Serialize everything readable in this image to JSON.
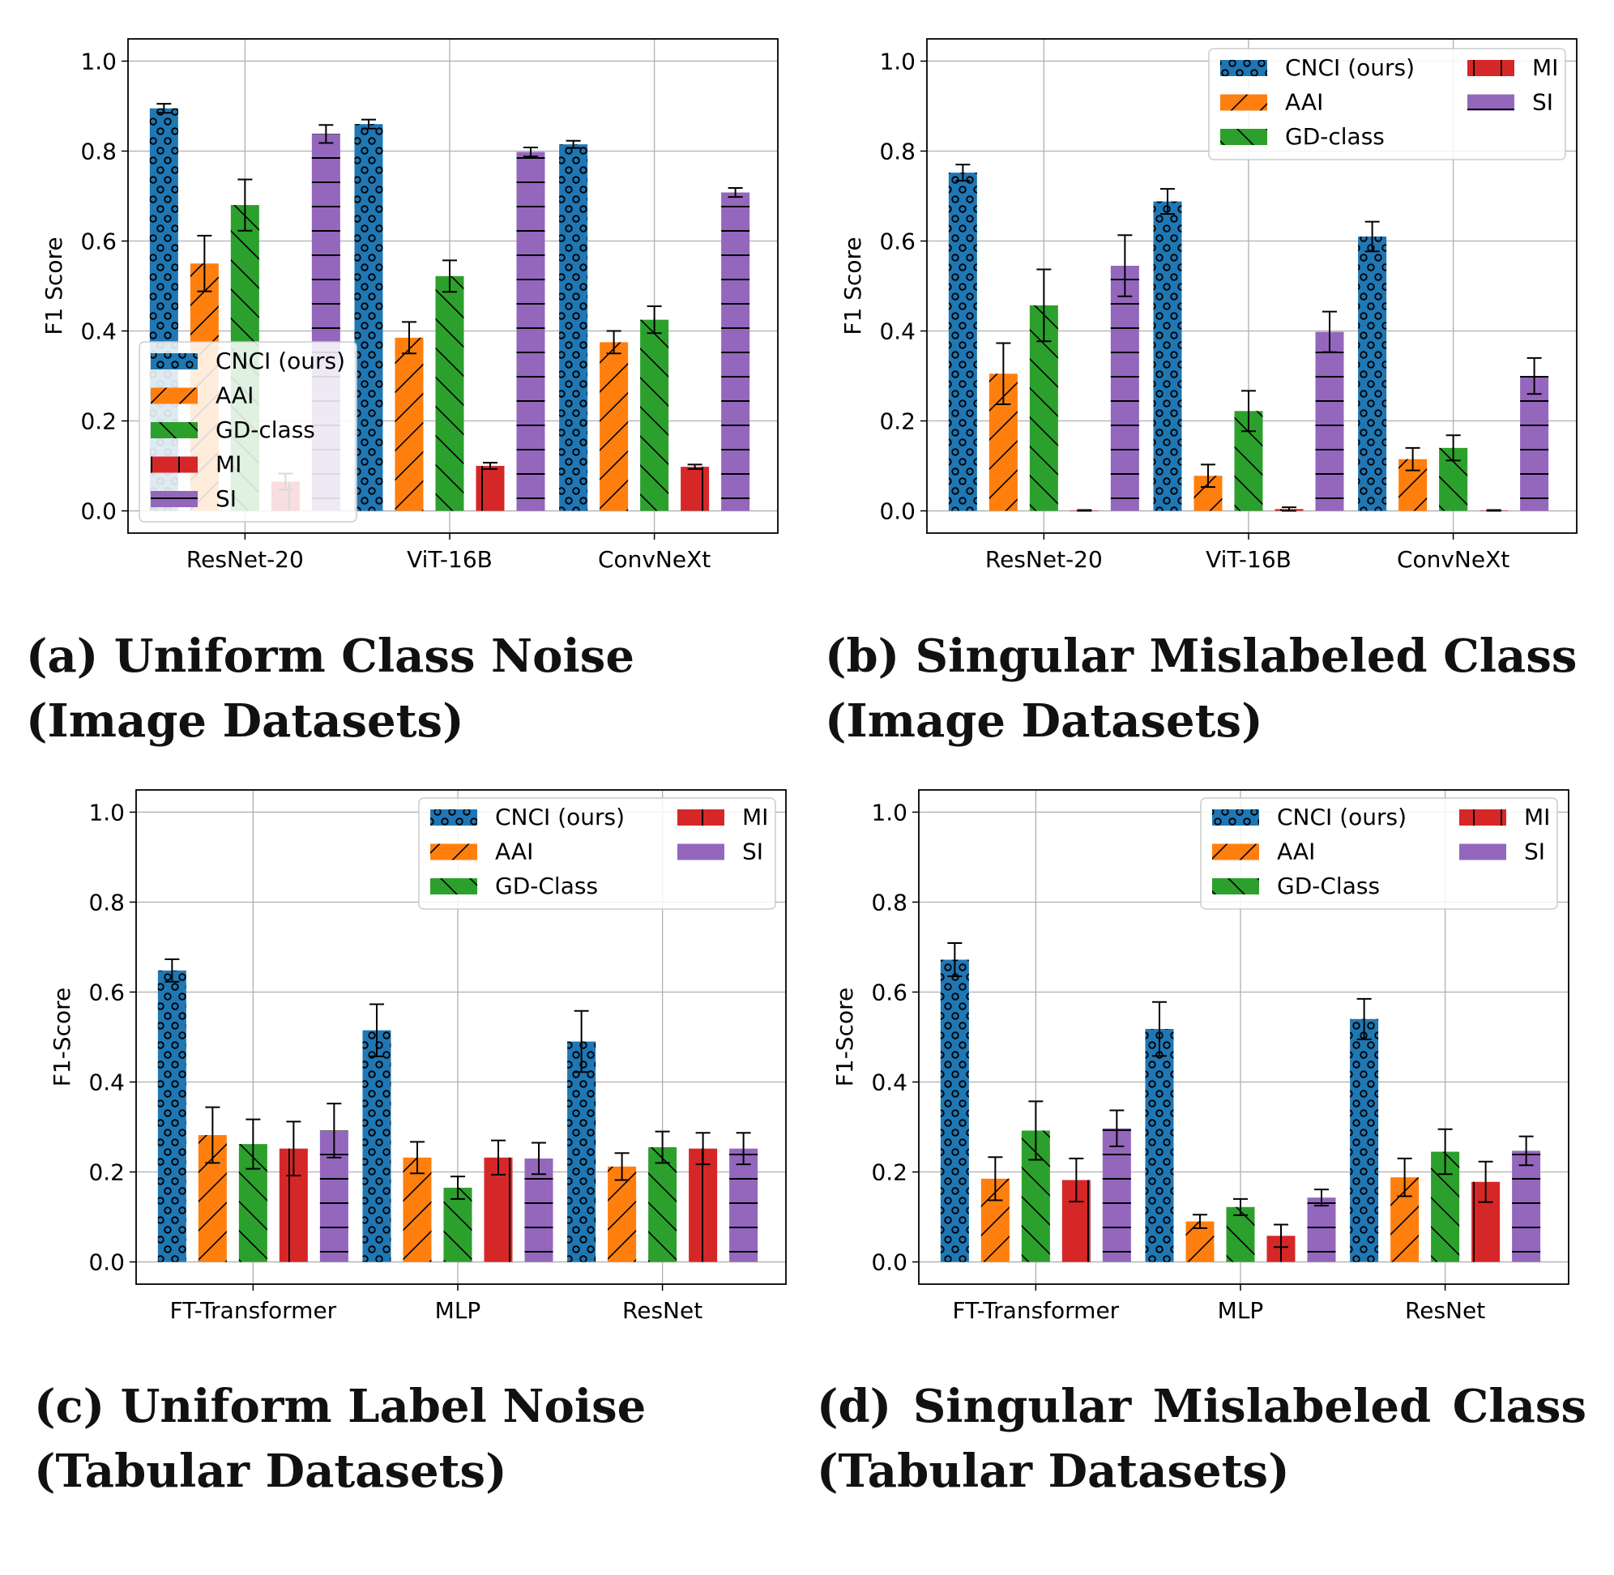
{
  "colors": {
    "CNCI": "#1f77b4",
    "AAI": "#ff7f0e",
    "GD": "#2ca02c",
    "MI": "#d62728",
    "SI": "#9467bd"
  },
  "captions": {
    "a": {
      "line1": "(a) Uniform Class Noise",
      "line2": "(Image Datasets)"
    },
    "b": {
      "line1": "(b) Singular Mislabeled Class",
      "line2": "(Image Datasets)"
    },
    "c": {
      "line1": "(c) Uniform Label Noise",
      "line2": "(Tabular Datasets)"
    },
    "d": {
      "line1_words": [
        "(d)",
        "Singular",
        "Mislabeled",
        "Class"
      ],
      "line2": "(Tabular Datasets)"
    }
  },
  "chart_data": [
    {
      "id": "a",
      "type": "bar",
      "ylabel": "F1 Score",
      "ylim": [
        0,
        1.0
      ],
      "yticks": [
        "0.0",
        "0.2",
        "0.4",
        "0.6",
        "0.8",
        "1.0"
      ],
      "grid": true,
      "legend": {
        "placement": "lower-left",
        "columns": 1
      },
      "categories": [
        "ResNet-20",
        "ViT-16B",
        "ConvNeXt"
      ],
      "series": [
        {
          "name": "CNCI (ours)",
          "key": "CNCI",
          "hatch": "dots",
          "values": [
            0.895,
            0.86,
            0.815
          ],
          "errors": [
            0.01,
            0.01,
            0.008
          ]
        },
        {
          "name": "AAI",
          "key": "AAI",
          "hatch": "slash",
          "values": [
            0.55,
            0.385,
            0.375
          ],
          "errors": [
            0.062,
            0.035,
            0.025
          ]
        },
        {
          "name": "GD-class",
          "key": "GD",
          "hatch": "back",
          "values": [
            0.68,
            0.522,
            0.425
          ],
          "errors": [
            0.057,
            0.035,
            0.03
          ]
        },
        {
          "name": "MI",
          "key": "MI",
          "hatch": "vert",
          "values": [
            0.065,
            0.1,
            0.098
          ],
          "errors": [
            0.018,
            0.007,
            0.005
          ]
        },
        {
          "name": "SI",
          "key": "SI",
          "hatch": "horiz",
          "values": [
            0.838,
            0.798,
            0.708
          ],
          "errors": [
            0.02,
            0.01,
            0.01
          ]
        }
      ]
    },
    {
      "id": "b",
      "type": "bar",
      "ylabel": "F1 Score",
      "ylim": [
        0,
        1.0
      ],
      "yticks": [
        "0.0",
        "0.2",
        "0.4",
        "0.6",
        "0.8",
        "1.0"
      ],
      "grid": true,
      "legend": {
        "placement": "upper-right",
        "columns": 2
      },
      "categories": [
        "ResNet-20",
        "ViT-16B",
        "ConvNeXt"
      ],
      "series": [
        {
          "name": "CNCI (ours)",
          "key": "CNCI",
          "hatch": "dots",
          "values": [
            0.752,
            0.688,
            0.61
          ],
          "errors": [
            0.018,
            0.028,
            0.033
          ]
        },
        {
          "name": "AAI",
          "key": "AAI",
          "hatch": "slash",
          "values": [
            0.305,
            0.078,
            0.115
          ],
          "errors": [
            0.068,
            0.025,
            0.025
          ]
        },
        {
          "name": "GD-class",
          "key": "GD",
          "hatch": "back",
          "values": [
            0.457,
            0.222,
            0.14
          ],
          "errors": [
            0.08,
            0.045,
            0.028
          ]
        },
        {
          "name": "MI",
          "key": "MI",
          "hatch": "vert",
          "values": [
            0.001,
            0.004,
            0.001
          ],
          "errors": [
            0.001,
            0.004,
            0.001
          ]
        },
        {
          "name": "SI",
          "key": "SI",
          "hatch": "horiz",
          "values": [
            0.545,
            0.398,
            0.3
          ],
          "errors": [
            0.068,
            0.045,
            0.04
          ]
        }
      ]
    },
    {
      "id": "c",
      "type": "bar",
      "ylabel": "F1-Score",
      "ylim": [
        0,
        1.0
      ],
      "yticks": [
        "0.0",
        "0.2",
        "0.4",
        "0.6",
        "0.8",
        "1.0"
      ],
      "grid": true,
      "legend": {
        "placement": "upper-right",
        "columns": 2
      },
      "categories": [
        "FT-Transformer",
        "MLP",
        "ResNet"
      ],
      "series": [
        {
          "name": "CNCI (ours)",
          "key": "CNCI",
          "hatch": "dots",
          "values": [
            0.648,
            0.515,
            0.49
          ],
          "errors": [
            0.025,
            0.058,
            0.068
          ]
        },
        {
          "name": "AAI",
          "key": "AAI",
          "hatch": "slash",
          "values": [
            0.282,
            0.232,
            0.212
          ],
          "errors": [
            0.062,
            0.035,
            0.03
          ]
        },
        {
          "name": "GD-Class",
          "key": "GD",
          "hatch": "back",
          "values": [
            0.262,
            0.165,
            0.255
          ],
          "errors": [
            0.055,
            0.025,
            0.035
          ]
        },
        {
          "name": "MI",
          "key": "MI",
          "hatch": "vert",
          "values": [
            0.252,
            0.232,
            0.252
          ],
          "errors": [
            0.06,
            0.038,
            0.035
          ]
        },
        {
          "name": "SI",
          "key": "SI",
          "hatch": "horiz",
          "values": [
            0.292,
            0.23,
            0.252
          ],
          "errors": [
            0.06,
            0.035,
            0.035
          ]
        }
      ]
    },
    {
      "id": "d",
      "type": "bar",
      "ylabel": "F1-Score",
      "ylim": [
        0,
        1.0
      ],
      "yticks": [
        "0.0",
        "0.2",
        "0.4",
        "0.6",
        "0.8",
        "1.0"
      ],
      "grid": true,
      "legend": {
        "placement": "upper-right",
        "columns": 2
      },
      "categories": [
        "FT-Transformer",
        "MLP",
        "ResNet"
      ],
      "series": [
        {
          "name": "CNCI (ours)",
          "key": "CNCI",
          "hatch": "dots",
          "values": [
            0.672,
            0.518,
            0.54
          ],
          "errors": [
            0.037,
            0.06,
            0.045
          ]
        },
        {
          "name": "AAI",
          "key": "AAI",
          "hatch": "slash",
          "values": [
            0.185,
            0.09,
            0.188
          ],
          "errors": [
            0.048,
            0.015,
            0.042
          ]
        },
        {
          "name": "GD-Class",
          "key": "GD",
          "hatch": "back",
          "values": [
            0.292,
            0.122,
            0.245
          ],
          "errors": [
            0.065,
            0.018,
            0.05
          ]
        },
        {
          "name": "MI",
          "key": "MI",
          "hatch": "vert",
          "values": [
            0.182,
            0.058,
            0.178
          ],
          "errors": [
            0.048,
            0.025,
            0.045
          ]
        },
        {
          "name": "SI",
          "key": "SI",
          "hatch": "horiz",
          "values": [
            0.297,
            0.143,
            0.247
          ],
          "errors": [
            0.04,
            0.018,
            0.032
          ]
        }
      ]
    }
  ]
}
